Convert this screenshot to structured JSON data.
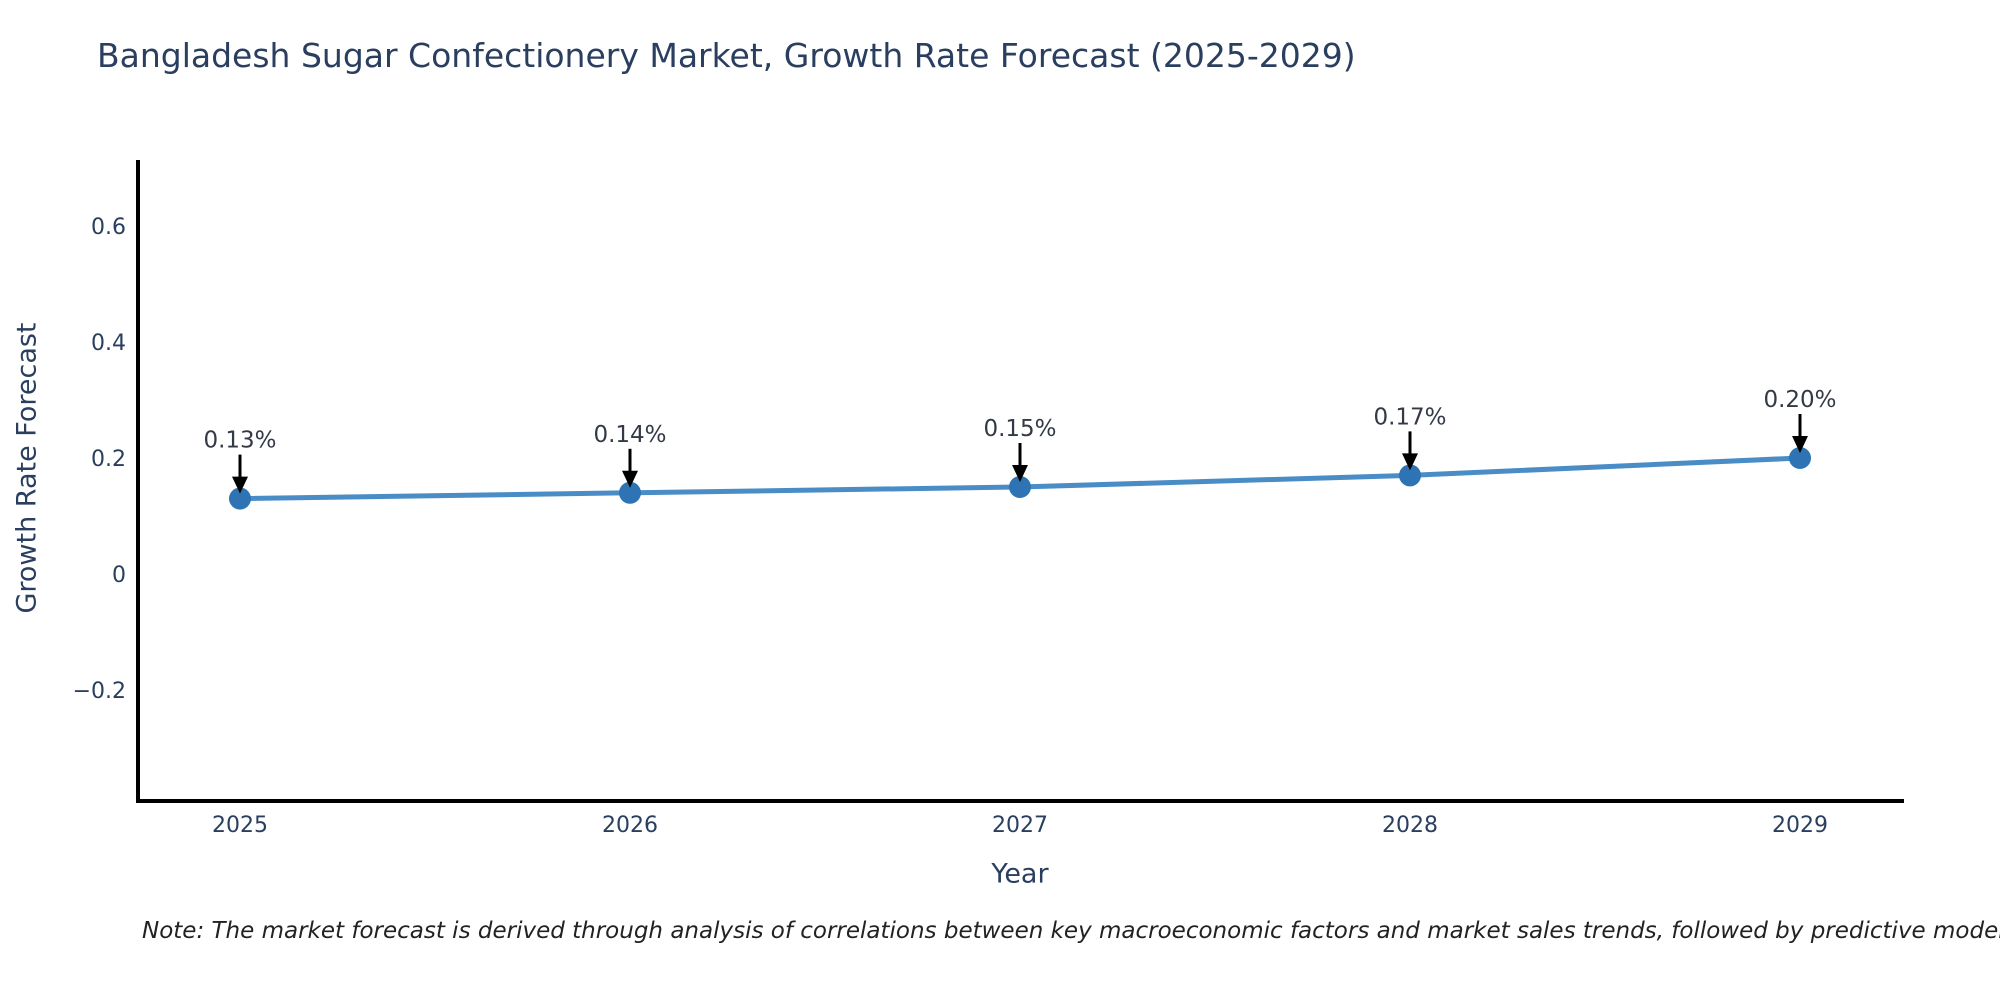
{
  "title": "Bangladesh Sugar Confectionery Market, Growth Rate Forecast (2025-2029)",
  "note": "Note: The market forecast is derived through analysis of correlations between key macroeconomic factors and market sales trends, followed by predictive modeling to project future sales.",
  "chart_data": {
    "type": "line",
    "title": "Bangladesh Sugar Confectionery Market, Growth Rate Forecast (2025-2029)",
    "xlabel": "Year",
    "ylabel": "Growth Rate Forecast",
    "x": [
      2025,
      2026,
      2027,
      2028,
      2029
    ],
    "series": [
      {
        "name": "Growth Rate Forecast",
        "values": [
          0.13,
          0.14,
          0.15,
          0.17,
          0.2
        ],
        "point_labels": [
          "0.13%",
          "0.14%",
          "0.15%",
          "0.17%",
          "0.20%"
        ]
      }
    ],
    "x_tick_labels": [
      "2025",
      "2026",
      "2027",
      "2028",
      "2029"
    ],
    "y_ticks": [
      0.6,
      0.4,
      0.2,
      0,
      -0.2
    ],
    "y_tick_labels": [
      "0.6",
      "0.4",
      "0.2",
      "0",
      "−0.2"
    ],
    "ylim": [
      -0.39,
      0.71
    ],
    "grid": false,
    "legend_position": "none",
    "annotation_style": "value labels with downward black arrows above each point",
    "colors": {
      "line": "#4a8dc6",
      "marker": "#2e74b4",
      "arrow": "#000000",
      "axis": "#000000",
      "text": "#2a3f5f",
      "annotation": "#333a46"
    }
  }
}
